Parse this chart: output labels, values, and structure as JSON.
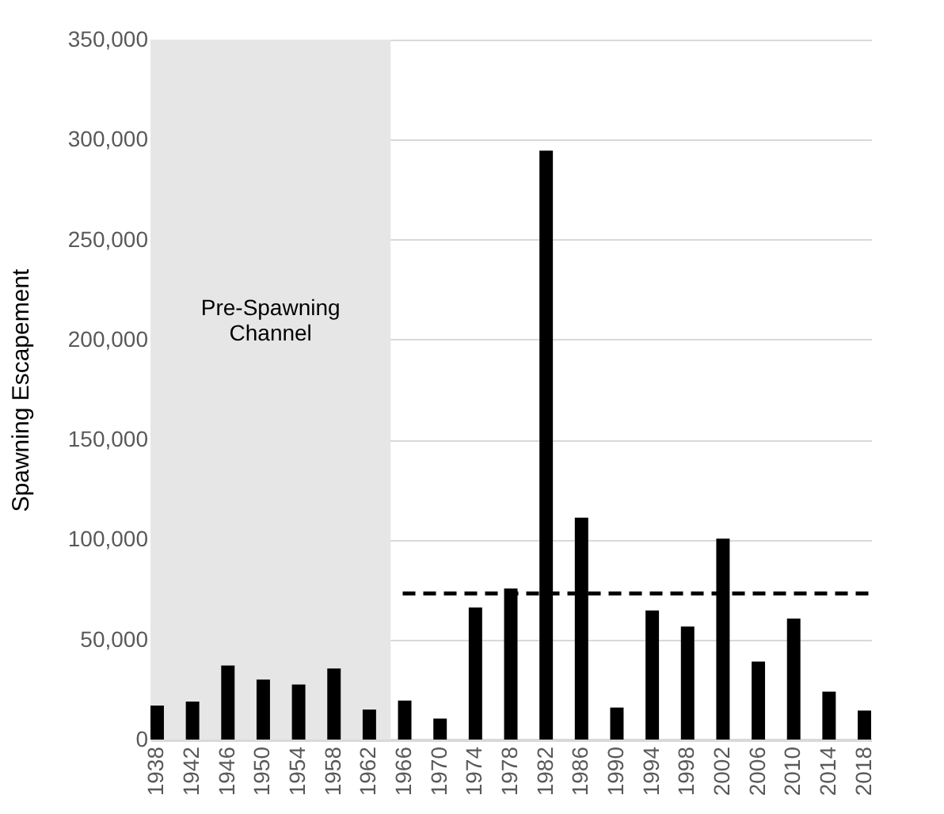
{
  "chart_data": {
    "type": "bar",
    "ylabel": "Spawning Escapement",
    "categories": [
      "1938",
      "1942",
      "1946",
      "1950",
      "1954",
      "1958",
      "1962",
      "1966",
      "1970",
      "1974",
      "1978",
      "1982",
      "1986",
      "1990",
      "1994",
      "1998",
      "2002",
      "2006",
      "2010",
      "2014",
      "2018"
    ],
    "values": [
      17000,
      19000,
      37000,
      30000,
      27500,
      35500,
      15000,
      19500,
      10500,
      66000,
      75500,
      294500,
      111000,
      16000,
      64500,
      56500,
      100500,
      39000,
      60500,
      24000,
      14500
    ],
    "color": "#000000",
    "ylim": [
      0,
      350000
    ],
    "yticks": [
      0,
      {
        "value": 50000,
        "label": "50,000"
      },
      {
        "value": 100000,
        "label": "100,000"
      },
      {
        "value": 150000,
        "label": "150,000"
      },
      {
        "value": 200000,
        "label": "200,000"
      },
      {
        "value": 250000,
        "label": "250,000"
      },
      {
        "value": 300000,
        "label": "300,000"
      },
      {
        "value": 350000,
        "label": "350,000"
      }
    ],
    "grid": "y",
    "bands": [
      {
        "axis": "x",
        "from": "1938",
        "to": "1962",
        "label": "Pre-Spawning Channel",
        "color": "#e6e6e6"
      }
    ],
    "ref_lines": [
      {
        "axis": "y",
        "value": 73000,
        "color": "#000000",
        "line_style": "dashed"
      }
    ]
  }
}
